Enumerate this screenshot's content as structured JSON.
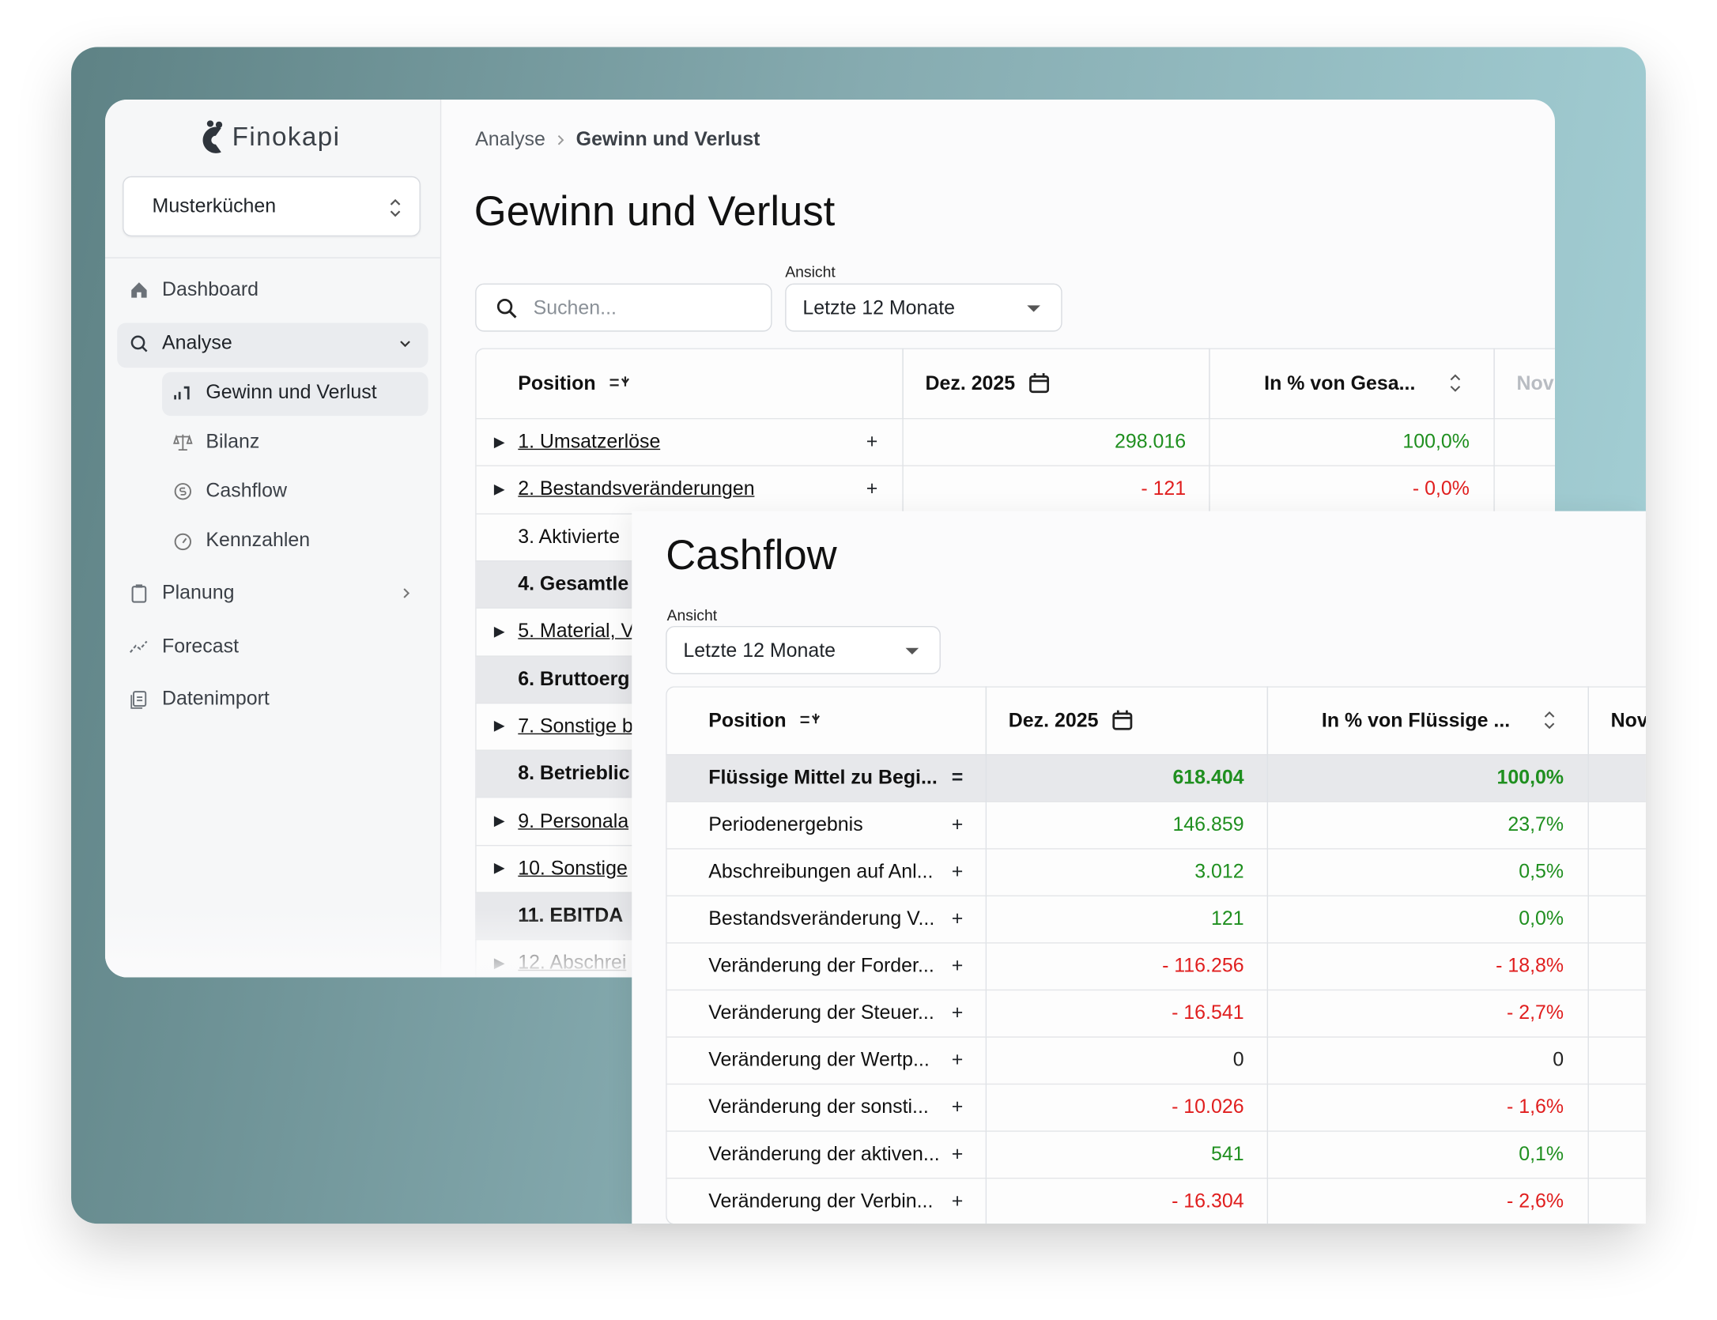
{
  "app": {
    "brand": "Finokapi",
    "company": "Musterküchen",
    "nav": {
      "dashboard": "Dashboard",
      "analyse": "Analyse",
      "analyse_items": [
        "Gewinn und Verlust",
        "Bilanz",
        "Cashflow",
        "Kennzahlen"
      ],
      "planung": "Planung",
      "forecast": "Forecast",
      "datenimport": "Datenimport"
    },
    "breadcrumb": [
      "Analyse",
      "Gewinn und Verlust"
    ]
  },
  "pl": {
    "title": "Gewinn und Verlust",
    "search_placeholder": "Suchen...",
    "view_label": "Ansicht",
    "view": "Letzte 12 Monate",
    "columns": [
      "Position",
      "Dez. 2025",
      "In % von Gesa...",
      "Nov"
    ],
    "rows": [
      {
        "name": "1. Umsatzerlöse",
        "sign": "+",
        "value": "298.016",
        "pct": "100,0%",
        "expandable": true
      },
      {
        "name": "2. Bestandsveränderungen",
        "sign": "+",
        "value": "- 121",
        "pct": "- 0,0%",
        "expandable": true
      },
      {
        "name": "3. Aktivierte"
      },
      {
        "name": "4. Gesamtle",
        "total": true
      },
      {
        "name": "5. Material, V",
        "expandable": true
      },
      {
        "name": "6. Bruttoerg",
        "total": true
      },
      {
        "name": "7. Sonstige b",
        "expandable": true
      },
      {
        "name": "8. Betrieblic",
        "total": true
      },
      {
        "name": "9. Personala",
        "expandable": true
      },
      {
        "name": "10. Sonstige",
        "expandable": true
      },
      {
        "name": "11. EBITDA",
        "total": true
      },
      {
        "name": "12. Abschrei",
        "expandable": true
      }
    ]
  },
  "cashflow": {
    "title": "Cashflow",
    "view_label": "Ansicht",
    "view": "Letzte 12 Monate",
    "columns": [
      "Position",
      "Dez. 2025",
      "In % von Flüssige ...",
      "Nov"
    ],
    "rows": [
      {
        "name": "Flüssige Mittel zu Begi...",
        "sign": "=",
        "value": "618.404",
        "pct": "100,0%",
        "total": true
      },
      {
        "name": "Periodenergebnis",
        "sign": "+",
        "value": "146.859",
        "pct": "23,7%"
      },
      {
        "name": "Abschreibungen auf Anl...",
        "sign": "+",
        "value": "3.012",
        "pct": "0,5%"
      },
      {
        "name": "Bestandsveränderung V...",
        "sign": "+",
        "value": "121",
        "pct": "0,0%"
      },
      {
        "name": "Veränderung der Forder...",
        "sign": "+",
        "value": "- 116.256",
        "pct": "- 18,8%"
      },
      {
        "name": "Veränderung der Steuer...",
        "sign": "+",
        "value": "- 16.541",
        "pct": "- 2,7%"
      },
      {
        "name": "Veränderung der Wertp...",
        "sign": "+",
        "value": "0",
        "pct": "0"
      },
      {
        "name": "Veränderung der sonsti...",
        "sign": "+",
        "value": "- 10.026",
        "pct": "- 1,6%"
      },
      {
        "name": "Veränderung der aktiven...",
        "sign": "+",
        "value": "541",
        "pct": "0,1%"
      },
      {
        "name": "Veränderung der Verbin...",
        "sign": "+",
        "value": "- 16.304",
        "pct": "- 2,6%"
      }
    ]
  }
}
